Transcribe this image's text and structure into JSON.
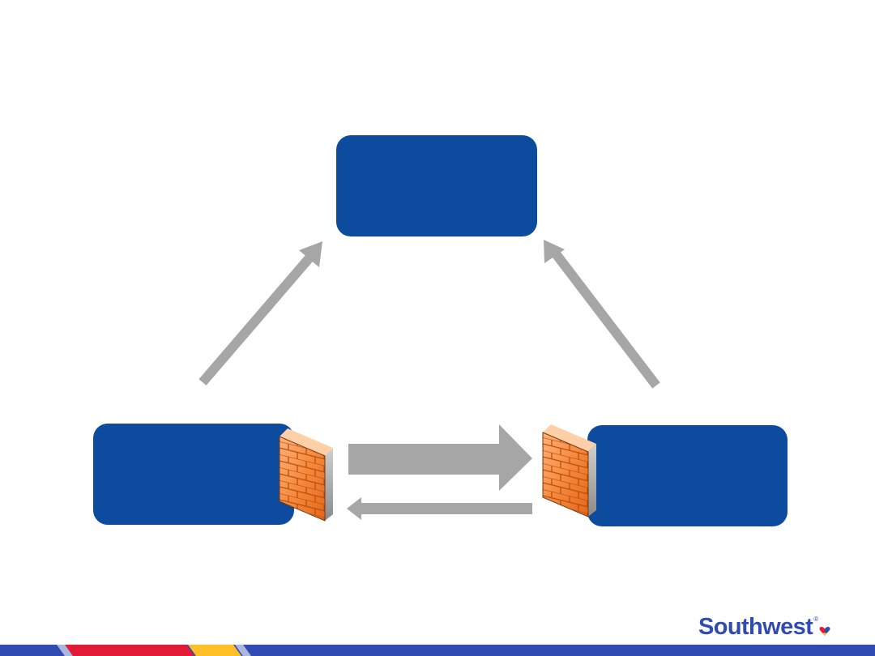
{
  "brand": {
    "name": "Southwest",
    "registered_mark": "®",
    "heart_colors": [
      "#e21a37",
      "#ffbf27",
      "#304cb2"
    ],
    "primary_color": "#304cb2"
  },
  "diagram": {
    "box_color": "#0d4b9f",
    "arrow_color": "#a6a6a6",
    "firewall_color": "#f27420",
    "nodes": [
      {
        "id": "top",
        "label": ""
      },
      {
        "id": "left",
        "label": ""
      },
      {
        "id": "right",
        "label": ""
      }
    ],
    "edges": [
      {
        "from": "left",
        "to": "top"
      },
      {
        "from": "right",
        "to": "top"
      },
      {
        "from": "left",
        "to": "right",
        "weight": "thick"
      },
      {
        "from": "right",
        "to": "left",
        "weight": "thin"
      }
    ],
    "icons": [
      "firewall-icon",
      "firewall-icon"
    ]
  },
  "footer": {
    "stripe_colors": [
      "#304cb2",
      "#e21a37",
      "#ffbf27",
      "#304cb2"
    ]
  }
}
